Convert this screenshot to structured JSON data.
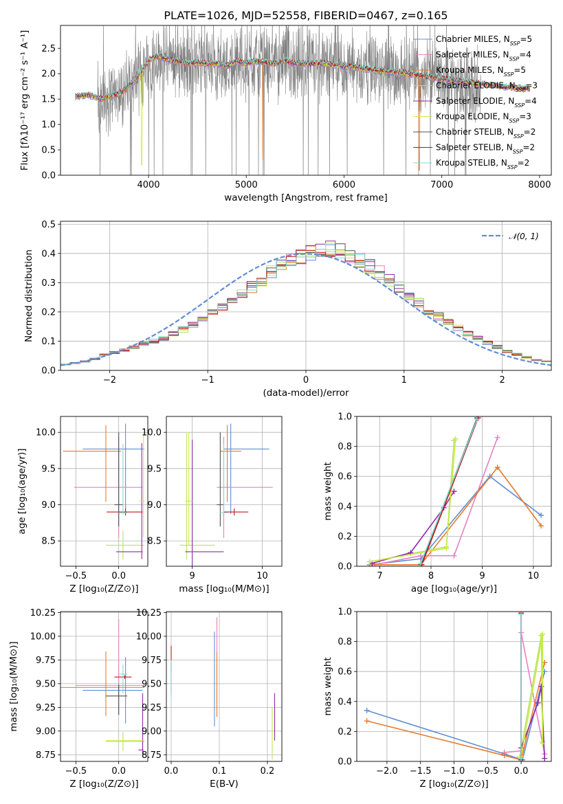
{
  "figure_title": "PLATE=1026, MJD=52558, FIBERID=0467, z=0.165",
  "colors": {
    "Chabrier MILES": "#5f8dd3",
    "Salpeter MILES": "#e87fc0",
    "Kroupa MILES": "#e87a28",
    "Chabrier ELODIE": "#b8e26a",
    "Salpeter ELODIE": "#8e2aaa",
    "Kroupa ELODIE": "#c8ec40",
    "Chabrier STELIB": "#505050",
    "Salpeter STELIB": "#c41414",
    "Kroupa STELIB": "#7fd9d9",
    "data": "#808080",
    "gaussian": "#5f8dd3"
  },
  "chart_data": [
    {
      "id": "spectrum",
      "type": "line",
      "title": "PLATE=1026, MJD=52558, FIBERID=0467, z=0.165",
      "xlabel": "wavelength [Angstrom, rest frame]",
      "ylabel": "Flux [fλ10⁻¹⁷ erg cm⁻² s⁻¹ A⁻¹]",
      "xlim": [
        3100,
        8120
      ],
      "ylim": [
        0,
        2.95
      ],
      "xticks": [
        4000,
        5000,
        6000,
        7000,
        8000
      ],
      "yticks": [
        0.0,
        0.5,
        1.0,
        1.5,
        2.0,
        2.5
      ],
      "ytick_labels": [
        "0.0",
        "0.5",
        "1.0",
        "1.5",
        "2.0",
        "2.5"
      ],
      "legend_position": "right",
      "legend": [
        "Chabrier MILES, N_SSP=5",
        "Salpeter MILES, N_SSP=4",
        "Kroupa MILES, N_SSP=5",
        "Chabrier ELODIE, N_SSP=3",
        "Salpeter ELODIE, N_SSP=4",
        "Kroupa ELODIE, N_SSP=3",
        "Chabrier STELIB, N_SSP=2",
        "Salpeter STELIB, N_SSP=2",
        "Kroupa STELIB, N_SSP=2"
      ],
      "continuum": {
        "x": [
          3250,
          3400,
          3500,
          3600,
          3700,
          3800,
          3900,
          4000,
          4100,
          4200,
          4300,
          4400,
          4500,
          4600,
          4700,
          4800,
          4900,
          5000,
          5100,
          5200,
          5300,
          5400,
          5500,
          5600,
          5800,
          6000,
          6200,
          6400,
          6600,
          6800,
          7000,
          7200,
          7400,
          7600,
          7900
        ],
        "y": [
          1.55,
          1.58,
          1.5,
          1.55,
          1.6,
          1.75,
          1.95,
          2.25,
          2.35,
          2.28,
          2.25,
          2.2,
          2.22,
          2.2,
          2.2,
          2.15,
          2.25,
          2.2,
          2.25,
          2.22,
          2.2,
          2.25,
          2.2,
          2.2,
          2.2,
          2.15,
          2.1,
          2.05,
          2.02,
          1.95,
          1.9,
          1.85,
          1.8,
          1.75,
          1.7
        ]
      }
    },
    {
      "id": "residuals",
      "type": "line",
      "xlabel": "(data-model)/error",
      "ylabel": "Normed distribution",
      "xlim": [
        -2.5,
        2.5
      ],
      "ylim": [
        0,
        0.51
      ],
      "xticks": [
        -2,
        -1,
        0,
        1,
        2
      ],
      "xtick_labels": [
        "−2",
        "−1",
        "0",
        "1",
        "2"
      ],
      "yticks": [
        0.0,
        0.1,
        0.2,
        0.3,
        0.4,
        0.5
      ],
      "ytick_labels": [
        "0.0",
        "0.1",
        "0.2",
        "0.3",
        "0.4",
        "0.5"
      ],
      "legend": [
        "𝒩(0, 1)"
      ],
      "legend_position": "top-right",
      "histogram_bin_width": 0.1,
      "histogram_values": [
        0.02,
        0.025,
        0.03,
        0.04,
        0.055,
        0.06,
        0.07,
        0.08,
        0.09,
        0.1,
        0.11,
        0.125,
        0.14,
        0.155,
        0.175,
        0.195,
        0.215,
        0.235,
        0.26,
        0.285,
        0.31,
        0.335,
        0.355,
        0.375,
        0.39,
        0.4,
        0.41,
        0.415,
        0.405,
        0.395,
        0.375,
        0.355,
        0.335,
        0.31,
        0.285,
        0.255,
        0.23,
        0.205,
        0.185,
        0.165,
        0.145,
        0.125,
        0.11,
        0.095,
        0.08,
        0.065,
        0.055,
        0.045,
        0.035,
        0.03
      ]
    },
    {
      "id": "age_vs_Z",
      "type": "scatter",
      "xlabel": "Z [log₁₀(Z/Z⊙)]",
      "ylabel": "age  [log₁₀(age/yr)]",
      "xlim": [
        -0.68,
        0.34
      ],
      "ylim": [
        8.15,
        10.22
      ],
      "xticks": [
        -0.5,
        0.0
      ],
      "xtick_labels": [
        "−0.5",
        "0.0"
      ],
      "yticks": [
        8.5,
        9.0,
        9.5,
        10.0
      ],
      "ytick_labels": [
        "8.5",
        "9.0",
        "9.5",
        "10.0"
      ],
      "points": [
        {
          "s": "Chabrier MILES",
          "x": 0.08,
          "y": 9.77,
          "xe": [
            0.5,
            0.22
          ],
          "ye": [
            0.9,
            0.35
          ]
        },
        {
          "s": "Salpeter MILES",
          "x": 0.0,
          "y": 9.24,
          "xe": [
            0.52,
            0.28
          ],
          "ye": [
            0.7,
            0.7
          ]
        },
        {
          "s": "Kroupa MILES",
          "x": -0.15,
          "y": 9.74,
          "xe": [
            0.5,
            0.18
          ],
          "ye": [
            0.7,
            0.36
          ]
        },
        {
          "s": "Chabrier ELODIE",
          "x": 0.05,
          "y": 8.44,
          "xe": [
            0.2,
            0.25
          ],
          "ye": [
            0.2,
            0.2
          ]
        },
        {
          "s": "Salpeter ELODIE",
          "x": 0.27,
          "y": 8.35,
          "xe": [
            0.3,
            0.01
          ],
          "ye": [
            0.1,
            1.5
          ]
        },
        {
          "s": "Kroupa ELODIE",
          "x": 0.29,
          "y": 9.05,
          "xe": [
            0.05,
            0.01
          ],
          "ye": [
            0.5,
            0.95
          ]
        },
        {
          "s": "Chabrier STELIB",
          "x": 0.0,
          "y": 9.0,
          "xe": [
            0.05,
            0.05
          ],
          "ye": [
            0.3,
            1.0
          ]
        },
        {
          "s": "Salpeter STELIB",
          "x": 0.08,
          "y": 8.9,
          "xe": [
            0.22,
            0.2
          ],
          "ye": [
            0.05,
            0.05
          ]
        },
        {
          "s": "Kroupa STELIB",
          "x": 0.05,
          "y": 8.89,
          "xe": [
            0.05,
            0.05
          ],
          "ye": [
            0.02,
            0.95
          ]
        }
      ]
    },
    {
      "id": "age_vs_mass",
      "type": "scatter",
      "xlabel": "mass [log₁₀(M/M⊙)]",
      "xlim": [
        8.63,
        10.28
      ],
      "ylim": [
        8.15,
        10.22
      ],
      "xticks": [
        9,
        10
      ],
      "xtick_labels": [
        "9",
        "10"
      ],
      "yticks": [
        8.5,
        9.0,
        9.5,
        10.0
      ],
      "ytick_labels": [
        "8.5",
        "9.0",
        "9.5",
        "10.0"
      ],
      "points": [
        {
          "s": "Chabrier MILES",
          "x": 9.55,
          "y": 9.77,
          "xe": [
            0.1,
            0.55
          ],
          "ye": [
            0.9,
            0.35
          ]
        },
        {
          "s": "Salpeter MILES",
          "x": 9.45,
          "y": 9.24,
          "xe": [
            0.1,
            0.7
          ],
          "ye": [
            0.7,
            0.7
          ]
        },
        {
          "s": "Kroupa MILES",
          "x": 9.5,
          "y": 9.74,
          "xe": [
            0.1,
            0.2
          ],
          "ye": [
            0.7,
            0.36
          ]
        },
        {
          "s": "Chabrier ELODIE",
          "x": 8.92,
          "y": 8.44,
          "xe": [
            0.1,
            0.4
          ],
          "ye": [
            0.2,
            1.55
          ]
        },
        {
          "s": "Salpeter ELODIE",
          "x": 9.0,
          "y": 8.35,
          "xe": [
            0.1,
            0.45
          ],
          "ye": [
            0.2,
            1.55
          ]
        },
        {
          "s": "Kroupa ELODIE",
          "x": 8.95,
          "y": 9.05,
          "xe": [
            0.05,
            0.05
          ],
          "ye": [
            0.62,
            0.95
          ]
        },
        {
          "s": "Chabrier STELIB",
          "x": 9.4,
          "y": 9.0,
          "xe": [
            0.05,
            0.05
          ],
          "ye": [
            0.3,
            1.0
          ]
        },
        {
          "s": "Salpeter STELIB",
          "x": 9.6,
          "y": 8.9,
          "xe": [
            0.15,
            0.2
          ],
          "ye": [
            0.05,
            0.05
          ]
        },
        {
          "s": "Kroupa STELIB",
          "x": 9.45,
          "y": 8.89,
          "xe": [
            0.05,
            0.05
          ],
          "ye": [
            0.02,
            0.95
          ]
        }
      ]
    },
    {
      "id": "weight_vs_age",
      "type": "line",
      "xlabel": "age  [log₁₀(age/yr)]",
      "ylabel": "mass weight",
      "xlim": [
        6.55,
        10.35
      ],
      "ylim": [
        0,
        1.0
      ],
      "xticks": [
        7,
        8,
        9,
        10
      ],
      "xtick_labels": [
        "7",
        "8",
        "9",
        "10"
      ],
      "yticks": [
        0.0,
        0.2,
        0.4,
        0.6,
        0.8,
        1.0
      ],
      "ytick_labels": [
        "0.0",
        "0.2",
        "0.4",
        "0.6",
        "0.8",
        "1.0"
      ],
      "series": [
        {
          "s": "Chabrier MILES",
          "x": [
            6.8,
            7.8,
            9.15,
            10.15
          ],
          "y": [
            0.01,
            0.05,
            0.6,
            0.34
          ]
        },
        {
          "s": "Salpeter MILES",
          "x": [
            6.9,
            7.8,
            8.45,
            9.3
          ],
          "y": [
            0.01,
            0.07,
            0.07,
            0.86
          ]
        },
        {
          "s": "Kroupa MILES",
          "x": [
            6.85,
            7.8,
            9.3,
            10.15
          ],
          "y": [
            0.01,
            0.01,
            0.66,
            0.27
          ]
        },
        {
          "s": "Chabrier ELODIE",
          "x": [
            6.8,
            8.3,
            8.45
          ],
          "y": [
            0.03,
            0.13,
            0.84
          ]
        },
        {
          "s": "Salpeter ELODIE",
          "x": [
            6.85,
            7.6,
            8.25,
            8.45
          ],
          "y": [
            0.02,
            0.09,
            0.39,
            0.5
          ]
        },
        {
          "s": "Kroupa ELODIE",
          "x": [
            6.8,
            8.3,
            8.48
          ],
          "y": [
            0.03,
            0.12,
            0.85
          ]
        },
        {
          "s": "Chabrier STELIB",
          "x": [
            7.8,
            8.9
          ],
          "y": [
            0.01,
            0.99
          ]
        },
        {
          "s": "Salpeter STELIB",
          "x": [
            7.82,
            8.92
          ],
          "y": [
            0.01,
            0.99
          ]
        },
        {
          "s": "Kroupa STELIB",
          "x": [
            7.8,
            8.9
          ],
          "y": [
            0.02,
            0.98
          ]
        }
      ]
    },
    {
      "id": "mass_vs_Z",
      "type": "scatter",
      "xlabel": "Z [log₁₀(Z/Z⊙)]",
      "ylabel": "mass [log₁₀(M/M⊙)]",
      "xlim": [
        -0.68,
        0.34
      ],
      "ylim": [
        8.68,
        10.26
      ],
      "xticks": [
        -0.5,
        0.0
      ],
      "xtick_labels": [
        "−0.5",
        "0.0"
      ],
      "yticks": [
        8.75,
        9.0,
        9.25,
        9.5,
        9.75,
        10.0,
        10.25
      ],
      "ytick_labels": [
        "8.75",
        "9.00",
        "9.25",
        "9.50",
        "9.75",
        "10.00",
        "10.25"
      ],
      "points": [
        {
          "s": "Chabrier MILES",
          "x": 0.08,
          "y": 9.43,
          "xe": [
            0.5,
            0.2
          ],
          "ye": [
            0.35,
            0.35
          ]
        },
        {
          "s": "Salpeter MILES",
          "x": 0.0,
          "y": 9.48,
          "xe": [
            0.5,
            0.3
          ],
          "ye": [
            0.3,
            0.7
          ]
        },
        {
          "s": "Kroupa MILES",
          "x": -0.15,
          "y": 9.46,
          "xe": [
            0.55,
            0.45
          ],
          "ye": [
            0.3,
            0.38
          ]
        },
        {
          "s": "Chabrier ELODIE",
          "x": 0.05,
          "y": 8.89,
          "xe": [
            0.2,
            0.25
          ],
          "ye": [
            0.1,
            0.1
          ]
        },
        {
          "s": "Salpeter ELODIE",
          "x": 0.28,
          "y": 8.8,
          "xe": [
            0.05,
            0.01
          ],
          "ye": [
            0.05,
            0.6
          ]
        },
        {
          "s": "Kroupa ELODIE",
          "x": 0.05,
          "y": 8.9,
          "xe": [
            0.2,
            0.25
          ],
          "ye": [
            0.05,
            0.05
          ]
        },
        {
          "s": "Chabrier STELIB",
          "x": 0.0,
          "y": 9.37,
          "xe": [
            0.15,
            0.1
          ],
          "ye": [
            0.2,
            0.12
          ]
        },
        {
          "s": "Salpeter STELIB",
          "x": 0.07,
          "y": 9.57,
          "xe": [
            0.12,
            0.08
          ],
          "ye": [
            0.02,
            0.02
          ]
        },
        {
          "s": "Kroupa STELIB",
          "x": 0.05,
          "y": 9.6,
          "xe": [
            0.05,
            0.05
          ],
          "ye": [
            0.2,
            0.1
          ]
        }
      ]
    },
    {
      "id": "mass_vs_EBV",
      "type": "scatter",
      "xlabel": "E(B-V)",
      "xlim": [
        -0.01,
        0.23
      ],
      "ylim": [
        8.68,
        10.26
      ],
      "xticks": [
        0.0,
        0.1,
        0.2
      ],
      "xtick_labels": [
        "0.0",
        "0.1",
        "0.2"
      ],
      "yticks": [
        8.75,
        9.0,
        9.25,
        9.5,
        9.75,
        10.0,
        10.25
      ],
      "ytick_labels": [
        "8.75",
        "9.00",
        "9.25",
        "9.50",
        "9.75",
        "10.00",
        "10.25"
      ],
      "points": [
        {
          "s": "Chabrier MILES",
          "x": 0.09,
          "y": 9.45,
          "xe": [
            0,
            0
          ],
          "ye": [
            0.4,
            0.6
          ]
        },
        {
          "s": "Salpeter MILES",
          "x": 0.095,
          "y": 9.5,
          "xe": [
            0,
            0
          ],
          "ye": [
            0.35,
            0.7
          ]
        },
        {
          "s": "Kroupa MILES",
          "x": 0.095,
          "y": 9.45,
          "xe": [
            0,
            0
          ],
          "ye": [
            0.3,
            0.38
          ]
        },
        {
          "s": "Chabrier ELODIE",
          "x": 0.21,
          "y": 8.9,
          "xe": [
            0,
            0
          ],
          "ye": [
            0.2,
            0.3
          ]
        },
        {
          "s": "Salpeter ELODIE",
          "x": 0.215,
          "y": 9.1,
          "xe": [
            0,
            0
          ],
          "ye": [
            0.2,
            0.3
          ]
        },
        {
          "s": "Kroupa ELODIE",
          "x": 0.21,
          "y": 9.0,
          "xe": [
            0,
            0
          ],
          "ye": [
            0.15,
            0.25
          ]
        },
        {
          "s": "Chabrier STELIB",
          "x": 0.0,
          "y": 9.6,
          "xe": [
            0,
            0
          ],
          "ye": [
            0.2,
            0.12
          ]
        },
        {
          "s": "Salpeter STELIB",
          "x": 0.0,
          "y": 9.72,
          "xe": [
            0,
            0
          ],
          "ye": [
            0.1,
            0.18
          ]
        },
        {
          "s": "Kroupa STELIB",
          "x": 0.0,
          "y": 9.55,
          "xe": [
            0,
            0
          ],
          "ye": [
            0.2,
            0.2
          ]
        }
      ]
    },
    {
      "id": "weight_vs_Z",
      "type": "line",
      "xlabel": "Z [log₁₀(Z/Z⊙)]",
      "ylabel": "mass weight",
      "xlim": [
        -2.45,
        0.45
      ],
      "ylim": [
        0,
        1.0
      ],
      "xticks": [
        -2.0,
        -1.5,
        -1.0,
        -0.5,
        0.0
      ],
      "xtick_labels": [
        "−2.0",
        "−1.5",
        "−1.0",
        "−0.5",
        "0.0"
      ],
      "yticks": [
        0.0,
        0.2,
        0.4,
        0.6,
        0.8,
        1.0
      ],
      "ytick_labels": [
        "0.0",
        "0.2",
        "0.4",
        "0.6",
        "0.8",
        "1.0"
      ],
      "series": [
        {
          "s": "Chabrier MILES",
          "x": [
            -2.3,
            -0.25,
            0.02,
            0.35
          ],
          "y": [
            0.34,
            0.05,
            0.01,
            0.6
          ]
        },
        {
          "s": "Salpeter MILES",
          "x": [
            -0.25,
            0.0,
            0.0,
            0.35
          ],
          "y": [
            0.06,
            0.07,
            0.86,
            0.05
          ]
        },
        {
          "s": "Kroupa MILES",
          "x": [
            -2.3,
            -0.25,
            0.0,
            0.35
          ],
          "y": [
            0.27,
            0.04,
            0.01,
            0.66
          ]
        },
        {
          "s": "Chabrier ELODIE",
          "x": [
            -0.02,
            0.3,
            0.32
          ],
          "y": [
            0.03,
            0.84,
            0.13
          ]
        },
        {
          "s": "Salpeter ELODIE",
          "x": [
            0.0,
            0.25,
            0.3,
            0.35
          ],
          "y": [
            0.09,
            0.39,
            0.5,
            0.02
          ]
        },
        {
          "s": "Kroupa ELODIE",
          "x": [
            0.0,
            0.32,
            0.32
          ],
          "y": [
            0.03,
            0.85,
            0.12
          ]
        },
        {
          "s": "Chabrier STELIB",
          "x": [
            0.0,
            0.0
          ],
          "y": [
            0.01,
            0.99
          ]
        },
        {
          "s": "Salpeter STELIB",
          "x": [
            0.0,
            0.0
          ],
          "y": [
            0.01,
            0.99
          ]
        },
        {
          "s": "Kroupa STELIB",
          "x": [
            0.0,
            0.0
          ],
          "y": [
            0.02,
            0.98
          ]
        }
      ]
    }
  ]
}
